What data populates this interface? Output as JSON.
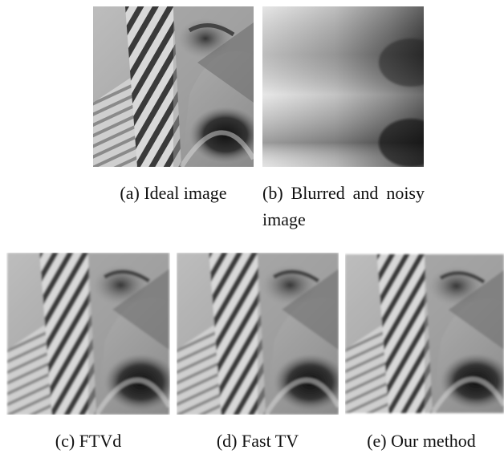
{
  "figure": {
    "panels": [
      {
        "caption": "(a) Ideal image"
      },
      {
        "caption": "(b) Blurred and noisy image"
      },
      {
        "caption": "(c) FTVd"
      },
      {
        "caption": "(d) Fast TV"
      },
      {
        "caption": "(e) Our method"
      }
    ]
  }
}
